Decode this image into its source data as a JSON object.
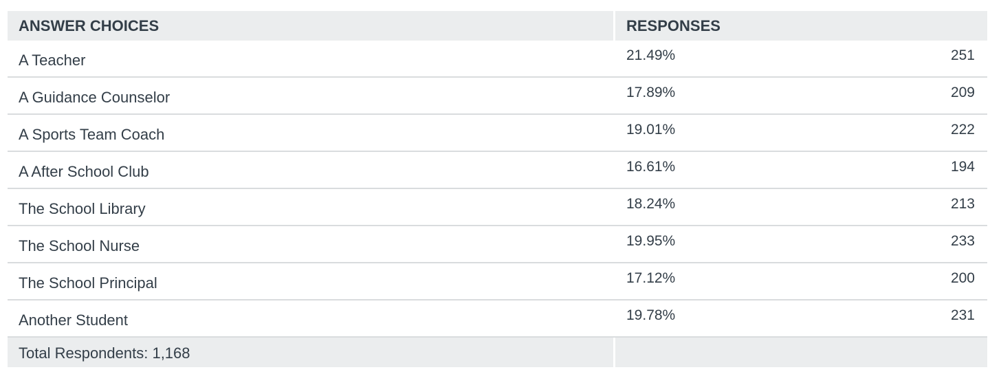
{
  "header": {
    "choices_label": "ANSWER CHOICES",
    "responses_label": "RESPONSES"
  },
  "chart_data": {
    "type": "table",
    "columns": [
      "ANSWER CHOICES",
      "RESPONSES"
    ],
    "rows": [
      {
        "choice": "A Teacher",
        "percent": "21.49%",
        "count": "251"
      },
      {
        "choice": "A Guidance Counselor",
        "percent": "17.89%",
        "count": "209"
      },
      {
        "choice": "A Sports Team Coach",
        "percent": "19.01%",
        "count": "222"
      },
      {
        "choice": "A After School Club",
        "percent": "16.61%",
        "count": "194"
      },
      {
        "choice": "The School Library",
        "percent": "18.24%",
        "count": "213"
      },
      {
        "choice": "The School Nurse",
        "percent": "19.95%",
        "count": "233"
      },
      {
        "choice": "The School Principal",
        "percent": "17.12%",
        "count": "200"
      },
      {
        "choice": "Another Student",
        "percent": "19.78%",
        "count": "231"
      }
    ]
  },
  "footer": {
    "total_label": "Total Respondents: 1,168"
  },
  "colors": {
    "header_bg": "#ebedee",
    "text": "#333e48",
    "divider": "#d9dcde"
  }
}
